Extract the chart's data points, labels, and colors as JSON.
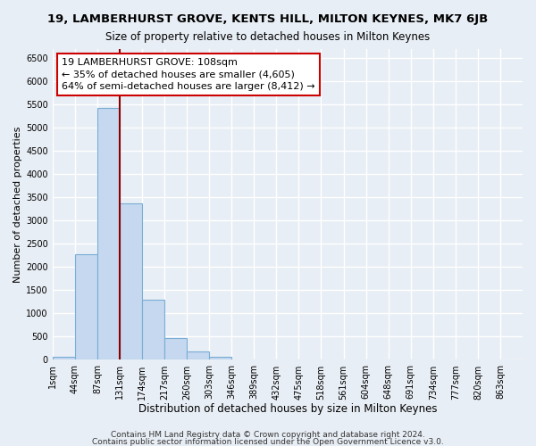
{
  "title": "19, LAMBERHURST GROVE, KENTS HILL, MILTON KEYNES, MK7 6JB",
  "subtitle": "Size of property relative to detached houses in Milton Keynes",
  "xlabel": "Distribution of detached houses by size in Milton Keynes",
  "ylabel": "Number of detached properties",
  "footer_line1": "Contains HM Land Registry data © Crown copyright and database right 2024.",
  "footer_line2": "Contains public sector information licensed under the Open Government Licence v3.0.",
  "bin_labels": [
    "1sqm",
    "44sqm",
    "87sqm",
    "131sqm",
    "174sqm",
    "217sqm",
    "260sqm",
    "303sqm",
    "346sqm",
    "389sqm",
    "432sqm",
    "475sqm",
    "518sqm",
    "561sqm",
    "604sqm",
    "648sqm",
    "691sqm",
    "734sqm",
    "777sqm",
    "820sqm",
    "863sqm"
  ],
  "bar_values": [
    60,
    2270,
    5430,
    3380,
    1290,
    480,
    185,
    75,
    0,
    0,
    0,
    0,
    0,
    0,
    0,
    0,
    0,
    0,
    0,
    0
  ],
  "bar_color": "#c5d8ef",
  "bar_edge_color": "#7aadd4",
  "bar_edge_width": 0.8,
  "vline_color": "#8b0000",
  "annotation_title": "19 LAMBERHURST GROVE: 108sqm",
  "annotation_line1": "← 35% of detached houses are smaller (4,605)",
  "annotation_line2": "64% of semi-detached houses are larger (8,412) →",
  "annotation_box_color": "white",
  "annotation_box_edge": "#cc0000",
  "ylim": [
    0,
    6700
  ],
  "yticks": [
    0,
    500,
    1000,
    1500,
    2000,
    2500,
    3000,
    3500,
    4000,
    4500,
    5000,
    5500,
    6000,
    6500
  ],
  "background_color": "#e8eef5",
  "plot_bg_color": "#e8eef5",
  "grid_color": "white",
  "title_fontsize": 9.5,
  "subtitle_fontsize": 8.5,
  "xlabel_fontsize": 8.5,
  "ylabel_fontsize": 8,
  "tick_fontsize": 7,
  "annotation_fontsize": 8,
  "footer_fontsize": 6.5
}
